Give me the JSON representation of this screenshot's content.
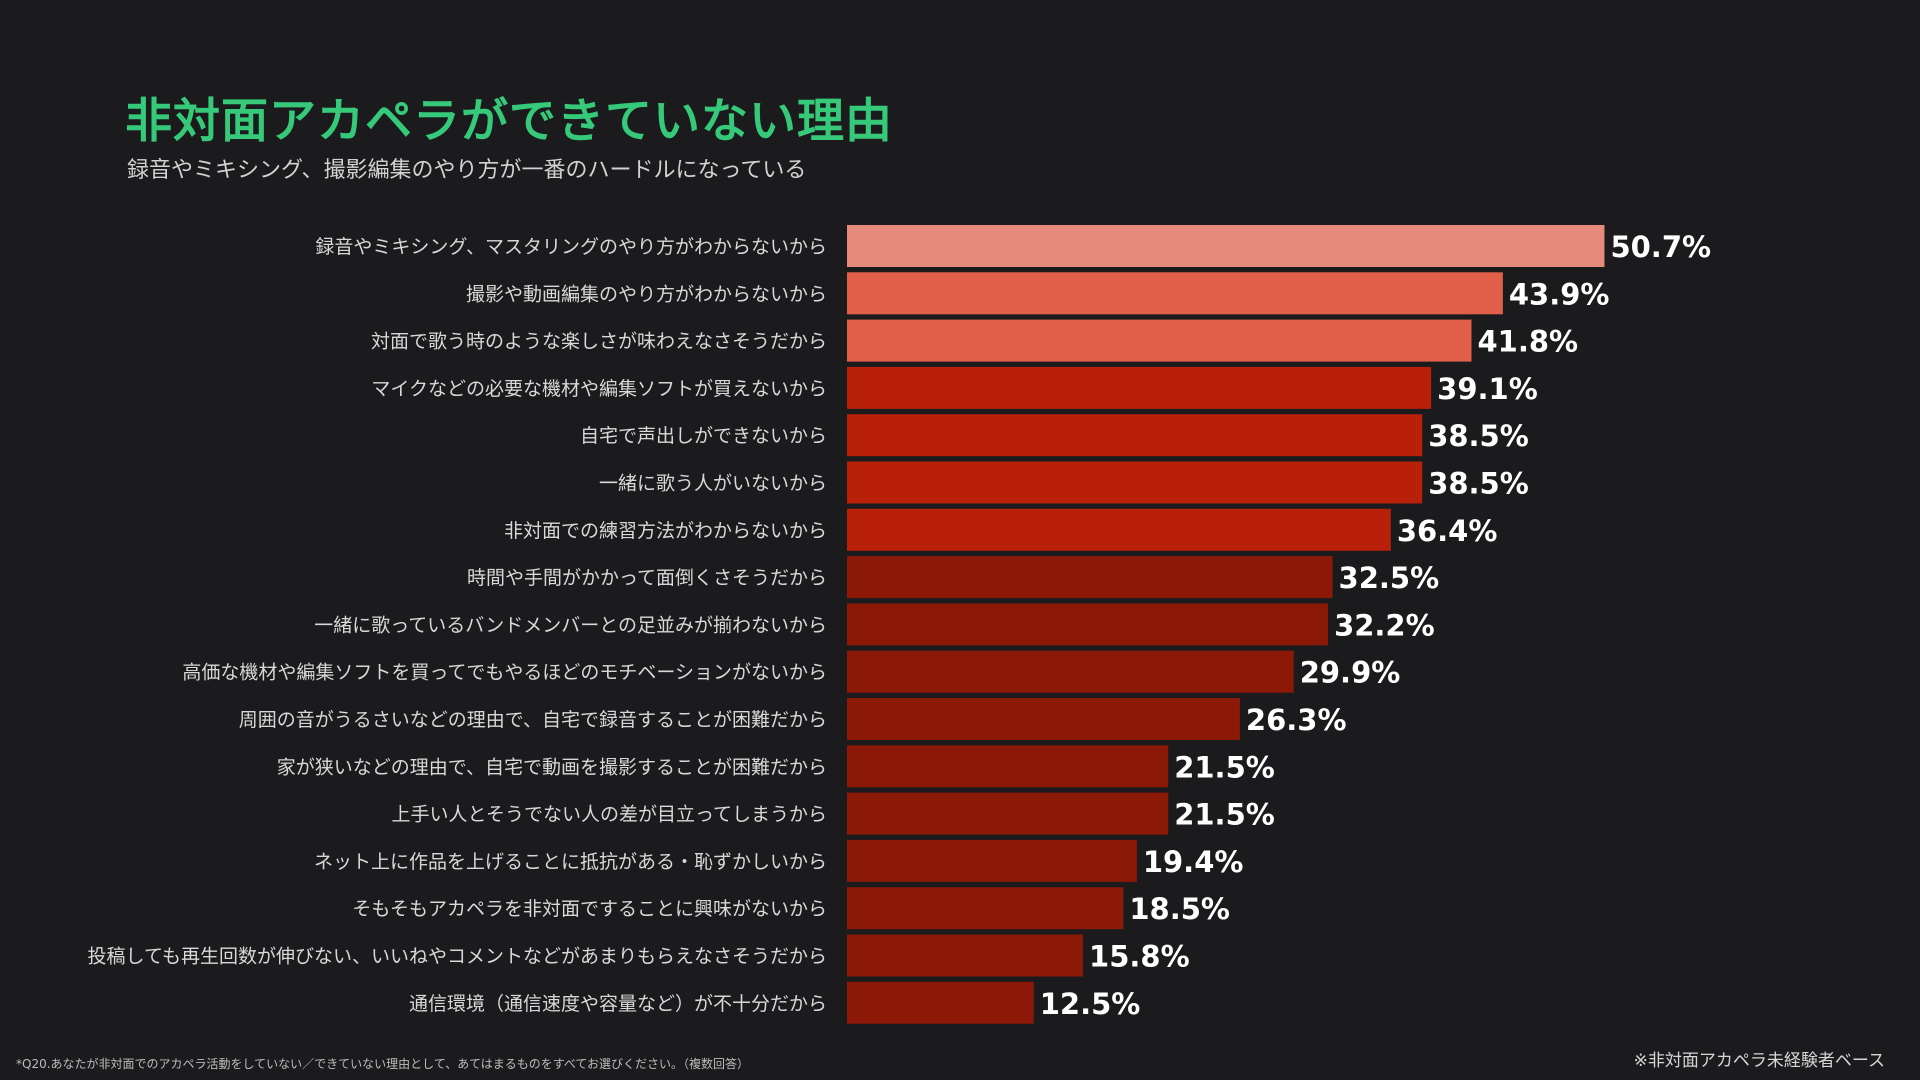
{
  "header": {
    "title": "非対面アカペラができていない理由",
    "subtitle": "録音やミキシング、撮影編集のやり方が一番のハードルになっている"
  },
  "footer": {
    "question_note": "*Q20.あなたが非対面でのアカペラ活動をしていない／できていない理由として、あてはまるものをすべてお選びください。（複数回答）",
    "base_note": "※非対面アカペラ未経験者ベース"
  },
  "colors": {
    "background": "#1b1b1d",
    "title": "#35c979",
    "bar_top": "#e68b7c",
    "bar_high": "#e2604a",
    "bar_mid": "#b8200a",
    "bar_low": "#8c1808"
  },
  "chart_data": {
    "type": "bar",
    "orientation": "horizontal",
    "value_suffix": "%",
    "xlim": [
      0,
      60
    ],
    "grid": false,
    "legend": "none",
    "categories": [
      "録音やミキシング、マスタリングのやり方がわからないから",
      "撮影や動画編集のやり方がわからないから",
      "対面で歌う時のような楽しさが味わえなさそうだから",
      "マイクなどの必要な機材や編集ソフトが買えないから",
      "自宅で声出しができないから",
      "一緒に歌う人がいないから",
      "非対面での練習方法がわからないから",
      "時間や手間がかかって面倒くさそうだから",
      "一緒に歌っているバンドメンバーとの足並みが揃わないから",
      "高価な機材や編集ソフトを買ってでもやるほどのモチベーションがないから",
      "周囲の音がうるさいなどの理由で、自宅で録音することが困難だから",
      "家が狭いなどの理由で、自宅で動画を撮影することが困難だから",
      "上手い人とそうでない人の差が目立ってしまうから",
      "ネット上に作品を上げることに抵抗がある・恥ずかしいから",
      "そもそもアカペラを非対面ですることに興味がないから",
      "投稿しても再生回数が伸びない、いいねやコメントなどがあまりもらえなさそうだから",
      "通信環境（通信速度や容量など）が不十分だから"
    ],
    "values": [
      50.7,
      43.9,
      41.8,
      39.1,
      38.5,
      38.5,
      36.4,
      32.5,
      32.2,
      29.9,
      26.3,
      21.5,
      21.5,
      19.4,
      18.5,
      15.8,
      12.5
    ],
    "value_labels": [
      "50.7%",
      "43.9%",
      "41.8%",
      "39.1%",
      "38.5%",
      "38.5%",
      "36.4%",
      "32.5%",
      "32.2%",
      "29.9%",
      "26.3%",
      "21.5%",
      "21.5%",
      "19.4%",
      "18.5%",
      "15.8%",
      "12.5%"
    ],
    "bar_colors": [
      "#e68b7c",
      "#e2604a",
      "#e2604a",
      "#b8200a",
      "#b8200a",
      "#b8200a",
      "#b8200a",
      "#8c1808",
      "#8c1808",
      "#8c1808",
      "#8c1808",
      "#8c1808",
      "#8c1808",
      "#8c1808",
      "#8c1808",
      "#8c1808",
      "#8c1808"
    ]
  }
}
